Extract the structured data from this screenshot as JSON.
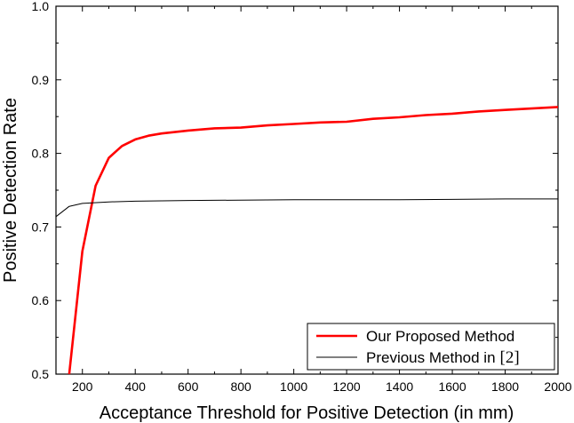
{
  "chart_data": {
    "type": "line",
    "title": "",
    "xlabel": "Acceptance Threshold for Positive Detection (in mm)",
    "ylabel": "Positive Detection Rate",
    "xlim": [
      100,
      2000
    ],
    "ylim": [
      0.5,
      1.0
    ],
    "x_ticks": [
      200,
      400,
      600,
      800,
      1000,
      1200,
      1400,
      1600,
      1800,
      2000
    ],
    "y_ticks": [
      0.5,
      0.6,
      0.7,
      0.8,
      0.9,
      1.0
    ],
    "y_tick_labels": [
      "0.5",
      "0.6",
      "0.7",
      "0.8",
      "0.9",
      "1.0"
    ],
    "grid": false,
    "legend_position": "bottom-right",
    "series": [
      {
        "name": "Our Proposed Method",
        "color": "#ff0000",
        "x": [
          150,
          200,
          250,
          300,
          350,
          400,
          450,
          500,
          600,
          700,
          800,
          900,
          1000,
          1100,
          1200,
          1300,
          1400,
          1500,
          1600,
          1700,
          1800,
          1900,
          2000
        ],
        "y": [
          0.5,
          0.667,
          0.756,
          0.794,
          0.81,
          0.819,
          0.824,
          0.827,
          0.831,
          0.834,
          0.835,
          0.838,
          0.84,
          0.842,
          0.843,
          0.847,
          0.849,
          0.852,
          0.854,
          0.857,
          0.859,
          0.861,
          0.863
        ]
      },
      {
        "name": "Previous Method in",
        "name_ref": "[2]",
        "color": "#000000",
        "x": [
          100,
          150,
          200,
          300,
          400,
          600,
          1000,
          1400,
          1800,
          2000
        ],
        "y": [
          0.714,
          0.728,
          0.732,
          0.734,
          0.735,
          0.736,
          0.737,
          0.737,
          0.738,
          0.738
        ]
      }
    ]
  }
}
